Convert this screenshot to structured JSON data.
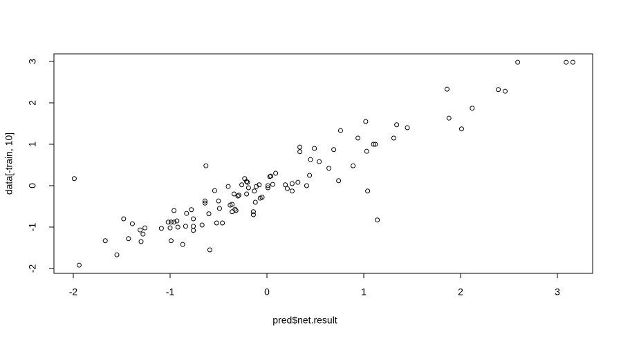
{
  "chart_data": {
    "type": "scatter",
    "x_label": "pred$net.result",
    "y_label": "data[-train, 10]",
    "xlim": [
      -2.2,
      3.364
    ],
    "ylim": [
      -2.117,
      3.183
    ],
    "xticks": [
      -2,
      -1,
      0,
      1,
      2,
      3
    ],
    "yticks": [
      -2,
      -1,
      0,
      1,
      2,
      3
    ],
    "color": "#000000",
    "x": [
      -1.99,
      -1.94,
      -1.67,
      -1.55,
      -1.48,
      -1.43,
      -1.39,
      -1.31,
      -1.3,
      -1.28,
      -1.26,
      -1.09,
      -1.02,
      -1.0,
      -0.99,
      -0.99,
      -0.96,
      -0.96,
      -0.93,
      -0.92,
      -0.87,
      -0.84,
      -0.83,
      -0.78,
      -0.76,
      -0.76,
      -0.76,
      -0.67,
      -0.64,
      -0.64,
      -0.63,
      -0.6,
      -0.59,
      -0.54,
      -0.52,
      -0.5,
      -0.49,
      -0.46,
      -0.4,
      -0.38,
      -0.36,
      -0.36,
      -0.34,
      -0.33,
      -0.32,
      -0.3,
      -0.29,
      -0.26,
      -0.23,
      -0.21,
      -0.21,
      -0.2,
      -0.19,
      -0.14,
      -0.14,
      -0.13,
      -0.12,
      -0.11,
      -0.08,
      -0.07,
      -0.05,
      0.01,
      0.01,
      0.03,
      0.04,
      0.06,
      0.09,
      0.19,
      0.21,
      0.26,
      0.26,
      0.32,
      0.34,
      0.34,
      0.41,
      0.44,
      0.45,
      0.49,
      0.54,
      0.64,
      0.69,
      0.74,
      0.76,
      0.89,
      0.94,
      1.02,
      1.03,
      1.04,
      1.1,
      1.12,
      1.14,
      1.31,
      1.34,
      1.45,
      1.86,
      1.88,
      2.01,
      2.12,
      2.39,
      2.46,
      2.59,
      3.09,
      3.16
    ],
    "values": [
      0.17,
      -1.92,
      -1.33,
      -1.67,
      -0.8,
      -1.28,
      -0.92,
      -1.07,
      -1.35,
      -1.17,
      -1.02,
      -1.03,
      -0.88,
      -1.02,
      -1.33,
      -0.88,
      -0.6,
      -0.88,
      -0.85,
      -1.0,
      -1.42,
      -0.98,
      -0.67,
      -0.58,
      -0.8,
      -1.08,
      -0.98,
      -0.95,
      -0.37,
      -0.42,
      0.48,
      -0.68,
      -1.55,
      -0.12,
      -0.9,
      -0.37,
      -0.55,
      -0.9,
      -0.02,
      -0.47,
      -0.63,
      -0.45,
      -0.2,
      -0.57,
      -0.6,
      -0.25,
      -0.23,
      0.02,
      0.17,
      0.1,
      -0.2,
      0.08,
      -0.05,
      -0.63,
      -0.7,
      -0.13,
      -0.4,
      -0.02,
      0.02,
      -0.3,
      -0.28,
      -0.05,
      0,
      0.22,
      0.23,
      0.03,
      0.3,
      0.02,
      -0.07,
      -0.13,
      0.05,
      0.08,
      0.93,
      0.82,
      0,
      0.25,
      0.63,
      0.9,
      0.58,
      0.42,
      0.87,
      0.12,
      1.33,
      0.48,
      1.15,
      1.55,
      0.83,
      -0.13,
      1.0,
      1.0,
      -0.83,
      1.15,
      1.47,
      1.4,
      2.33,
      1.63,
      1.37,
      1.87,
      2.32,
      2.28,
      2.98,
      2.98,
      2.98
    ]
  }
}
